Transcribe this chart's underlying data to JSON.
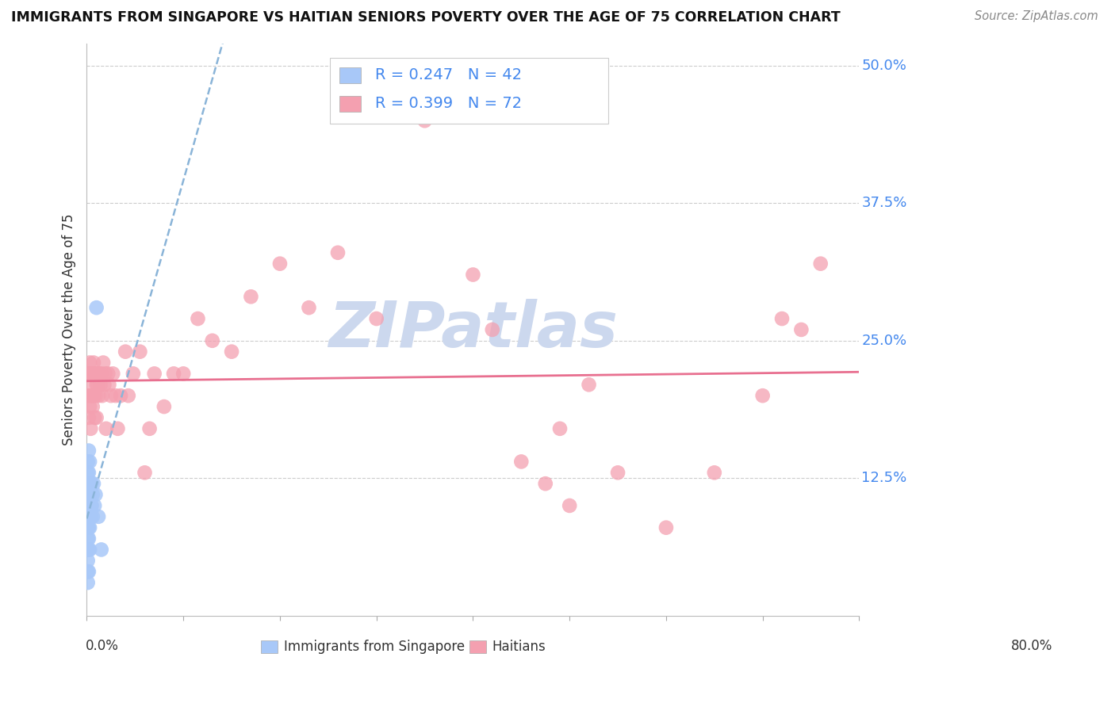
{
  "title": "IMMIGRANTS FROM SINGAPORE VS HAITIAN SENIORS POVERTY OVER THE AGE OF 75 CORRELATION CHART",
  "source": "Source: ZipAtlas.com",
  "ylabel": "Seniors Poverty Over the Age of 75",
  "ytick_labels": [
    "12.5%",
    "25.0%",
    "37.5%",
    "50.0%"
  ],
  "ytick_vals": [
    0.125,
    0.25,
    0.375,
    0.5
  ],
  "xlim": [
    0.0,
    0.8
  ],
  "ylim": [
    0.0,
    0.52
  ],
  "singapore_R": 0.247,
  "singapore_N": 42,
  "haitian_R": 0.399,
  "haitian_N": 72,
  "singapore_color": "#a8c8f8",
  "haitian_color": "#f4a0b0",
  "singapore_line_color": "#8ab4d8",
  "haitian_line_color": "#e87090",
  "axis_label_color": "#4488ee",
  "text_color": "#333333",
  "watermark": "ZIPatlas",
  "watermark_color": "#ccd8ee",
  "singapore_x": [
    0.001,
    0.001,
    0.001,
    0.001,
    0.001,
    0.001,
    0.001,
    0.001,
    0.001,
    0.001,
    0.001,
    0.001,
    0.002,
    0.002,
    0.002,
    0.002,
    0.002,
    0.002,
    0.002,
    0.002,
    0.002,
    0.002,
    0.003,
    0.003,
    0.003,
    0.003,
    0.003,
    0.003,
    0.003,
    0.004,
    0.004,
    0.004,
    0.005,
    0.005,
    0.006,
    0.006,
    0.007,
    0.008,
    0.009,
    0.01,
    0.012,
    0.015
  ],
  "singapore_y": [
    0.03,
    0.04,
    0.05,
    0.06,
    0.07,
    0.08,
    0.09,
    0.1,
    0.11,
    0.12,
    0.13,
    0.14,
    0.04,
    0.06,
    0.07,
    0.08,
    0.09,
    0.1,
    0.11,
    0.12,
    0.13,
    0.15,
    0.06,
    0.08,
    0.09,
    0.1,
    0.11,
    0.12,
    0.14,
    0.09,
    0.1,
    0.12,
    0.1,
    0.12,
    0.09,
    0.11,
    0.12,
    0.1,
    0.11,
    0.28,
    0.09,
    0.06
  ],
  "haitian_x": [
    0.001,
    0.001,
    0.002,
    0.002,
    0.003,
    0.003,
    0.004,
    0.004,
    0.004,
    0.005,
    0.005,
    0.006,
    0.006,
    0.007,
    0.007,
    0.008,
    0.008,
    0.009,
    0.009,
    0.01,
    0.01,
    0.011,
    0.012,
    0.012,
    0.013,
    0.014,
    0.015,
    0.016,
    0.017,
    0.018,
    0.019,
    0.02,
    0.022,
    0.023,
    0.025,
    0.027,
    0.03,
    0.032,
    0.035,
    0.04,
    0.043,
    0.048,
    0.055,
    0.06,
    0.065,
    0.07,
    0.08,
    0.09,
    0.1,
    0.115,
    0.13,
    0.15,
    0.17,
    0.2,
    0.23,
    0.26,
    0.3,
    0.35,
    0.4,
    0.42,
    0.45,
    0.475,
    0.49,
    0.5,
    0.52,
    0.55,
    0.6,
    0.65,
    0.7,
    0.72,
    0.74,
    0.76
  ],
  "haitian_y": [
    0.2,
    0.22,
    0.18,
    0.22,
    0.19,
    0.23,
    0.2,
    0.22,
    0.17,
    0.2,
    0.22,
    0.19,
    0.21,
    0.23,
    0.2,
    0.22,
    0.18,
    0.22,
    0.2,
    0.18,
    0.21,
    0.21,
    0.2,
    0.22,
    0.22,
    0.21,
    0.22,
    0.2,
    0.23,
    0.21,
    0.22,
    0.17,
    0.22,
    0.21,
    0.2,
    0.22,
    0.2,
    0.17,
    0.2,
    0.24,
    0.2,
    0.22,
    0.24,
    0.13,
    0.17,
    0.22,
    0.19,
    0.22,
    0.22,
    0.27,
    0.25,
    0.24,
    0.29,
    0.32,
    0.28,
    0.33,
    0.27,
    0.45,
    0.31,
    0.26,
    0.14,
    0.12,
    0.17,
    0.1,
    0.21,
    0.13,
    0.08,
    0.13,
    0.2,
    0.27,
    0.26,
    0.32
  ]
}
